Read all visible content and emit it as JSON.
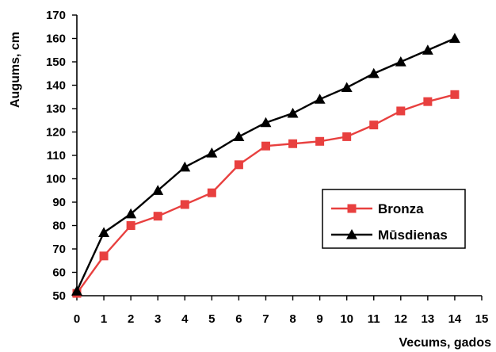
{
  "chart_data": {
    "type": "line",
    "title": "",
    "xlabel": "Vecums, gados",
    "ylabel": "Augums, cm",
    "xlim": [
      0,
      15
    ],
    "ylim": [
      50,
      170
    ],
    "x_ticks": [
      "0",
      "1",
      "2",
      "3",
      "4",
      "5",
      "6",
      "7",
      "8",
      "9",
      "10",
      "11",
      "12",
      "13",
      "14",
      "15"
    ],
    "y_ticks": [
      "50",
      "60",
      "70",
      "80",
      "90",
      "100",
      "110",
      "120",
      "130",
      "140",
      "150",
      "160",
      "170"
    ],
    "grid": false,
    "legend_position": "right",
    "x": [
      0,
      1,
      2,
      3,
      4,
      5,
      6,
      7,
      8,
      9,
      10,
      11,
      12,
      13,
      14
    ],
    "series": [
      {
        "name": "Bronza",
        "color": "#e8403f",
        "marker": "square",
        "values": [
          51,
          67,
          80,
          84,
          89,
          94,
          106,
          114,
          115,
          116,
          118,
          123,
          129,
          133,
          136
        ]
      },
      {
        "name": "Mūsdienas",
        "color": "#000000",
        "marker": "triangle",
        "values": [
          52,
          77,
          85,
          95,
          105,
          111,
          118,
          124,
          128,
          134,
          139,
          145,
          150,
          155,
          160
        ]
      }
    ]
  }
}
